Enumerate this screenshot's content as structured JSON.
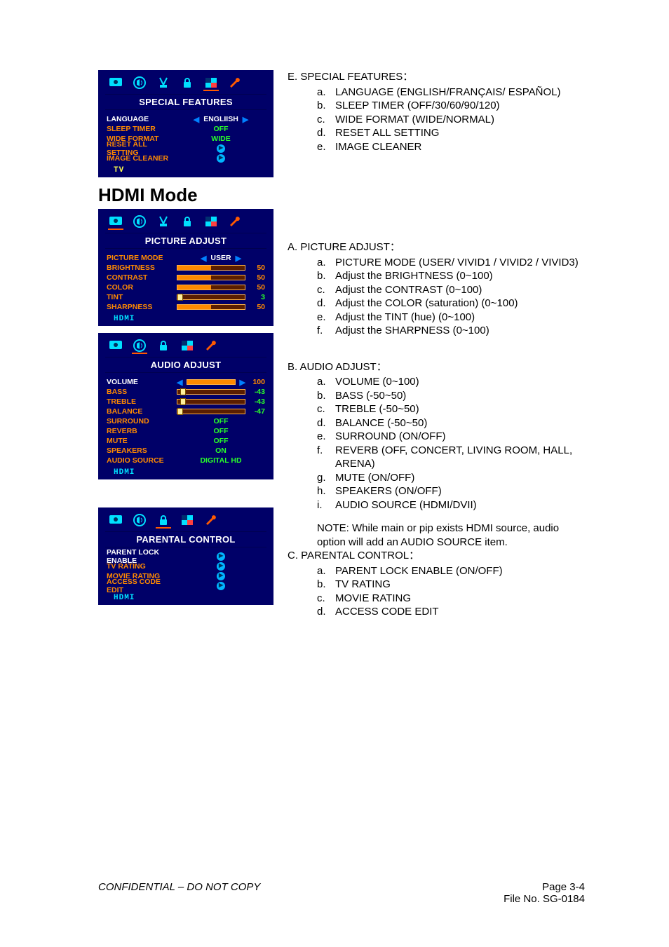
{
  "colors": {
    "osd_bg": "#000068",
    "osd_text_orange": "#ff8a00",
    "osd_text_green": "#29ff29",
    "osd_text_cyan": "#00e0ff",
    "osd_text_yellow": "#ffff4d",
    "osd_text_white": "#ffffff",
    "arrow_blue": "#0080ff",
    "slider_track": "#5a1e00",
    "slider_fill": "#ff8a00",
    "slider_tick": "#ffef9e"
  },
  "footer": {
    "left": "CONFIDENTIAL – DO NOT COPY",
    "page": "Page  3-4",
    "file": "File  No.  SG-0184"
  },
  "hdmi_heading": "HDMI Mode",
  "osd1": {
    "title": "SPECIAL FEATURES",
    "mode_label": "TV",
    "mode_color": "#ffff4d",
    "selected_icon": 4,
    "rows": [
      {
        "label": "LANGUAGE",
        "label_color": "#ffffff",
        "type": "select",
        "value": "ENGLIISH",
        "value_color": "#ffffff"
      },
      {
        "label": "SLEEP TIMER",
        "label_color": "#ff8a00",
        "type": "text",
        "value": "OFF",
        "value_color": "#29ff29"
      },
      {
        "label": "WIDE FORMAT",
        "label_color": "#ff8a00",
        "type": "text",
        "value": "WIDE",
        "value_color": "#29ff29"
      },
      {
        "label": "RESET ALL SETTING",
        "label_color": "#ff8a00",
        "type": "enter"
      },
      {
        "label": "IMAGE CLEANER",
        "label_color": "#ff8a00",
        "type": "enter"
      }
    ]
  },
  "osd2": {
    "title": "PICTURE  ADJUST",
    "mode_label": "HDMI",
    "mode_color": "#00e0ff",
    "selected_icon": 0,
    "rows": [
      {
        "label": "PICTURE MODE",
        "label_color": "#ff8a00",
        "type": "select",
        "value": "USER",
        "value_color": "#ffffff"
      },
      {
        "label": "BRIGHTNESS",
        "label_color": "#ff8a00",
        "type": "slider",
        "value": 50,
        "min": 0,
        "max": 100,
        "num_color": "#ff8a00"
      },
      {
        "label": "CONTRAST",
        "label_color": "#ff8a00",
        "type": "slider",
        "value": 50,
        "min": 0,
        "max": 100,
        "num_color": "#ff8a00"
      },
      {
        "label": "COLOR",
        "label_color": "#ff8a00",
        "type": "slider",
        "value": 50,
        "min": 0,
        "max": 100,
        "num_color": "#ff8a00"
      },
      {
        "label": "TINT",
        "label_color": "#ff8a00",
        "type": "slider",
        "value": 3,
        "min": 0,
        "max": 100,
        "num_color": "#29ff29",
        "tick": true
      },
      {
        "label": "SHARPNESS",
        "label_color": "#ff8a00",
        "type": "slider",
        "value": 50,
        "min": 0,
        "max": 100,
        "num_color": "#ff8a00"
      }
    ]
  },
  "osd3": {
    "title": "AUDIO  ADJUST",
    "mode_label": "HDMI",
    "mode_color": "#00e0ff",
    "selected_icon": 1,
    "icon_count": 5,
    "rows": [
      {
        "label": "VOLUME",
        "label_color": "#ffffff",
        "type": "slider",
        "value": 100,
        "min": 0,
        "max": 100,
        "num_color": "#ff8a00",
        "selected": true
      },
      {
        "label": "BASS",
        "label_color": "#ff8a00",
        "type": "slider",
        "value": -43,
        "min": -50,
        "max": 50,
        "num_color": "#29ff29",
        "tick": true
      },
      {
        "label": "TREBLE",
        "label_color": "#ff8a00",
        "type": "slider",
        "value": -43,
        "min": -50,
        "max": 50,
        "num_color": "#29ff29",
        "tick": true
      },
      {
        "label": "BALANCE",
        "label_color": "#ff8a00",
        "type": "slider",
        "value": -47,
        "min": -50,
        "max": 50,
        "num_color": "#29ff29",
        "tick": true
      },
      {
        "label": "SURROUND",
        "label_color": "#ff8a00",
        "type": "text",
        "value": "OFF",
        "value_color": "#29ff29"
      },
      {
        "label": "REVERB",
        "label_color": "#ff8a00",
        "type": "text",
        "value": "OFF",
        "value_color": "#29ff29"
      },
      {
        "label": "MUTE",
        "label_color": "#ff8a00",
        "type": "text",
        "value": "OFF",
        "value_color": "#29ff29"
      },
      {
        "label": "SPEAKERS",
        "label_color": "#ff8a00",
        "type": "text",
        "value": "ON",
        "value_color": "#29ff29"
      },
      {
        "label": "AUDIO SOURCE",
        "label_color": "#ff8a00",
        "type": "text",
        "value": "DIGITAL HD",
        "value_color": "#29ff29"
      }
    ]
  },
  "osd4": {
    "title": "PARENTAL CONTROL",
    "mode_label": "HDMI",
    "mode_color": "#00e0ff",
    "selected_icon": 2,
    "icon_count": 5,
    "rows": [
      {
        "label": "PARENT LOCK ENABLE",
        "label_color": "#ffffff",
        "type": "enter"
      },
      {
        "label": "TV RATING",
        "label_color": "#ff8a00",
        "type": "enter"
      },
      {
        "label": "MOVIE RATING",
        "label_color": "#ff8a00",
        "type": "enter"
      },
      {
        "label": "ACCESS CODE EDIT",
        "label_color": "#ff8a00",
        "type": "enter"
      }
    ]
  },
  "text": {
    "secE_head": "E. SPECIAL FEATURES：",
    "secE": [
      "LANGUAGE (ENGLISH/FRANÇAIS/ ESPAÑOL)",
      "SLEEP TIMER (OFF/30/60/90/120)",
      "WIDE FORMAT (WIDE/NORMAL)",
      "RESET ALL SETTING",
      "IMAGE CLEANER"
    ],
    "secA_head": "A. PICTURE ADJUST：",
    "secA": [
      "PICTURE MODE (USER/ VIVID1 / VIVID2 / VIVID3)",
      "Adjust the BRIGHTNESS (0~100)",
      "Adjust the CONTRAST (0~100)",
      "Adjust the COLOR (saturation) (0~100)",
      "Adjust the TINT (hue) (0~100)",
      "Adjust the SHARPNESS (0~100)"
    ],
    "secB_head": "B. AUDIO ADJUST：",
    "secB": [
      "VOLUME (0~100)",
      "BASS (-50~50)",
      "TREBLE (-50~50)",
      "BALANCE (-50~50)",
      "SURROUND (ON/OFF)",
      "REVERB (OFF, CONCERT, LIVING ROOM, HALL, ARENA)",
      "MUTE (ON/OFF)",
      "SPEAKERS (ON/OFF)",
      "AUDIO SOURCE (HDMI/DVII)"
    ],
    "secB_note": "NOTE: While main or pip exists HDMI source, audio option will add an AUDIO SOURCE item.",
    "secC_head": "C. PARENTAL CONTROL：",
    "secC": [
      "PARENT LOCK ENABLE (ON/OFF)",
      "TV RATING",
      "MOVIE RATING",
      "ACCESS CODE EDIT"
    ]
  }
}
